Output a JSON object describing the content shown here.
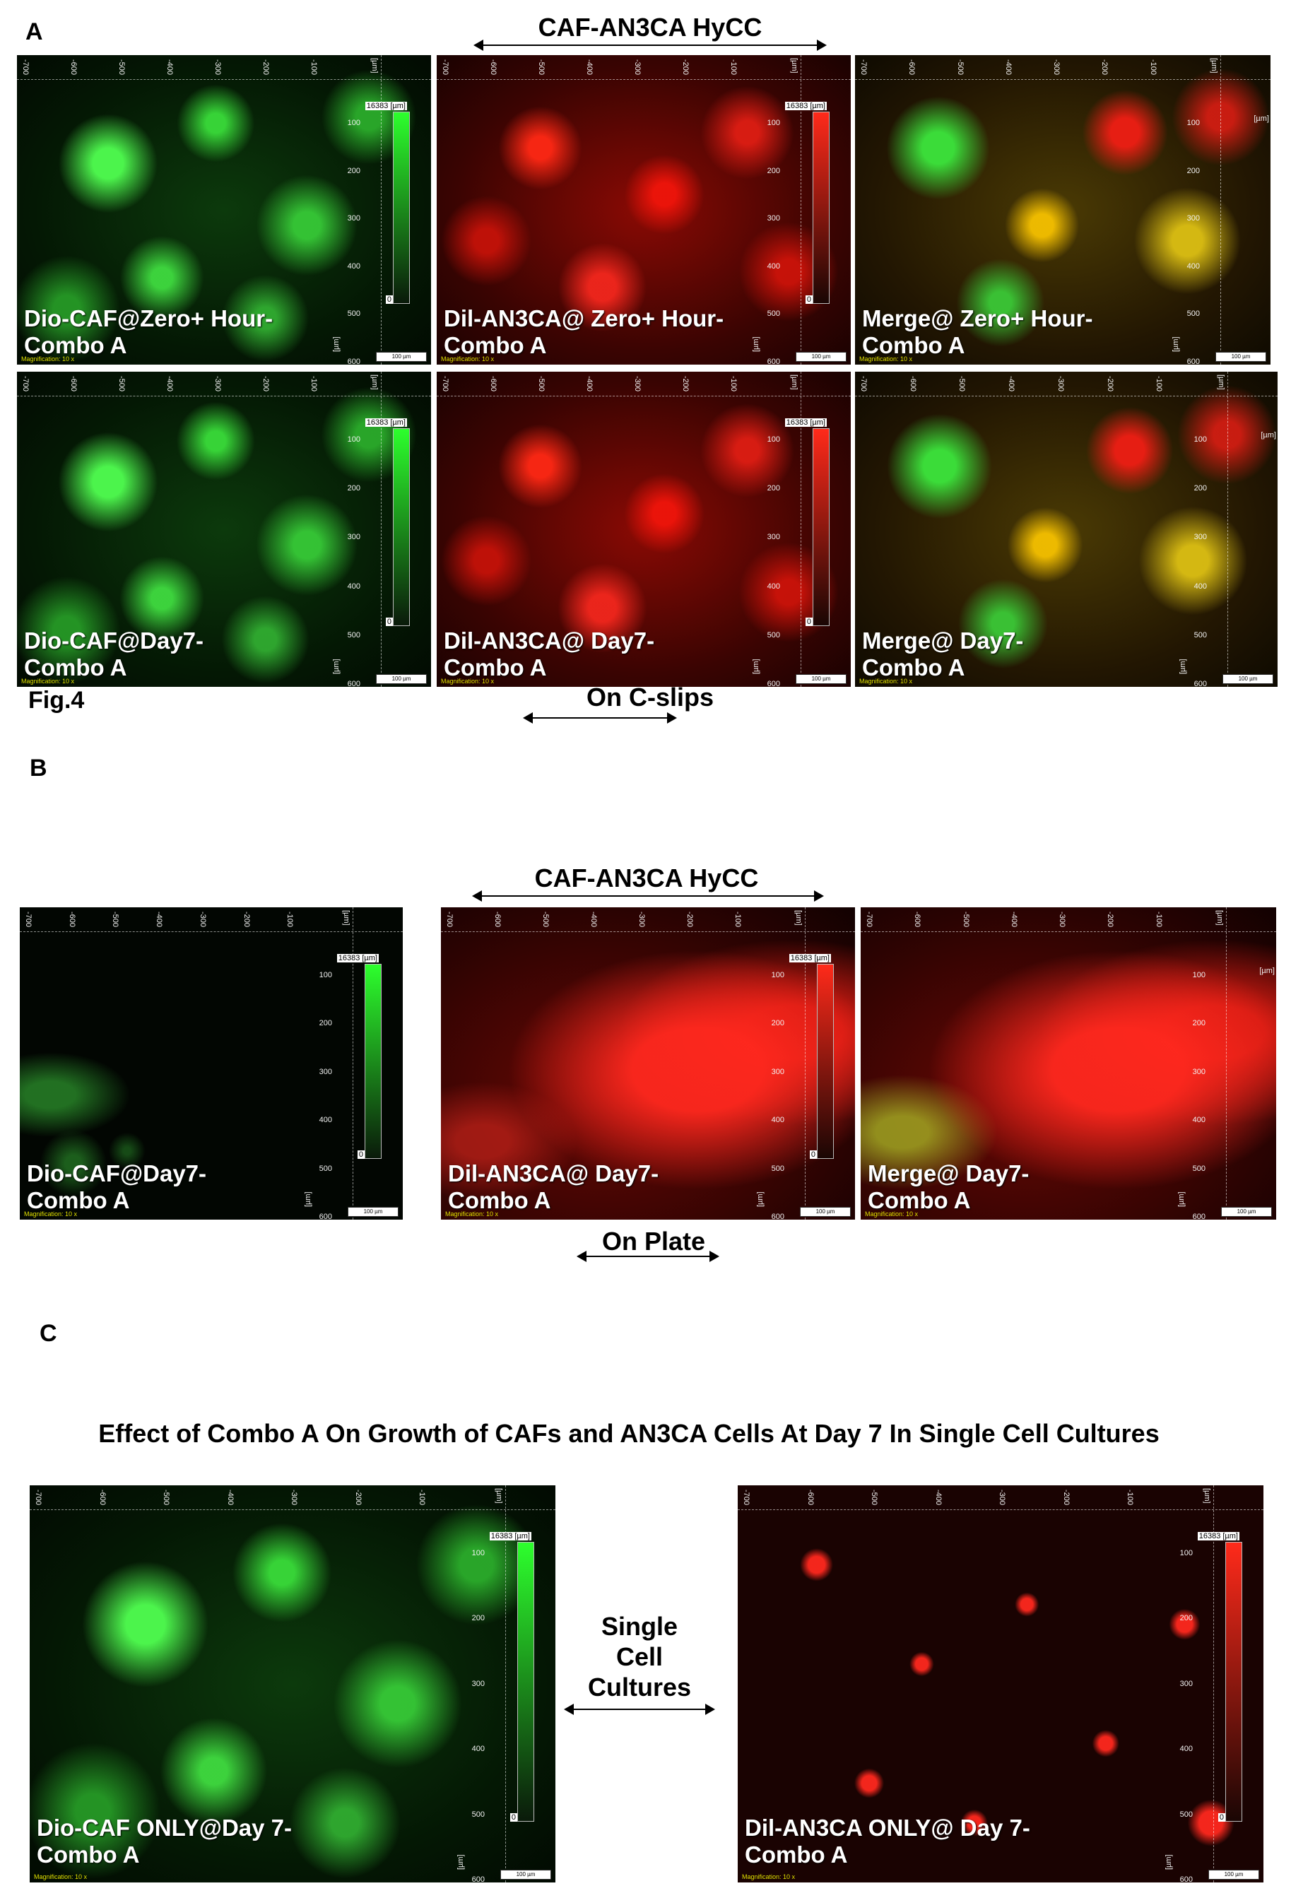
{
  "figure": {
    "figure_label": "Fig.4",
    "panel_a": {
      "letter": "A",
      "title": "CAF-AN3CA HyCC",
      "subtitle": "On C-slips",
      "images": [
        {
          "color": "green",
          "caption_line1": "Dio-CAF@Zero+  Hour-",
          "caption_line2": "Combo A"
        },
        {
          "color": "red",
          "caption_line1": "Dil-AN3CA@ Zero+  Hour-",
          "caption_line2": "Combo A"
        },
        {
          "color": "merge",
          "caption_line1": "Merge@ Zero+  Hour-",
          "caption_line2": "Combo A"
        },
        {
          "color": "green",
          "caption_line1": "Dio-CAF@Day7-",
          "caption_line2": "Combo A"
        },
        {
          "color": "red",
          "caption_line1": "Dil-AN3CA@ Day7-",
          "caption_line2": "Combo A"
        },
        {
          "color": "merge",
          "caption_line1": "Merge@ Day7-",
          "caption_line2": "Combo A"
        }
      ]
    },
    "panel_b": {
      "letter": "B",
      "title": "CAF-AN3CA HyCC",
      "subtitle": "On Plate",
      "images": [
        {
          "color": "dim-green",
          "caption_line1": "Dio-CAF@Day7-",
          "caption_line2": "Combo A"
        },
        {
          "color": "red-plate",
          "caption_line1": "Dil-AN3CA@ Day7-",
          "caption_line2": "Combo A"
        },
        {
          "color": "merge-plate",
          "caption_line1": "Merge@ Day7-",
          "caption_line2": "Combo A"
        }
      ]
    },
    "panel_c": {
      "letter": "C",
      "title": "Effect of Combo A On Growth of CAFs and AN3CA Cells At Day 7 In Single Cell Cultures",
      "middle_label_line1": "Single",
      "middle_label_line2": "Cell",
      "middle_label_line3": "Cultures",
      "images": [
        {
          "color": "green",
          "caption_line1": "Dio-CAF ONLY@Day 7-",
          "caption_line2": "Combo A"
        },
        {
          "color": "sparse-red",
          "caption_line1": "Dil-AN3CA ONLY@ Day 7-",
          "caption_line2": "Combo A"
        }
      ]
    },
    "microscope_overlay": {
      "x_ticks": [
        "-700",
        "-600",
        "-500",
        "-400",
        "-300",
        "-200",
        "-100"
      ],
      "y_ticks": [
        "100",
        "200",
        "300",
        "400",
        "500",
        "600"
      ],
      "unit": "[µm]",
      "intensity_max": "16383",
      "intensity_min": "0",
      "scale_bar_label": "100 µm",
      "magnification": "Magnification:   10 x"
    }
  }
}
